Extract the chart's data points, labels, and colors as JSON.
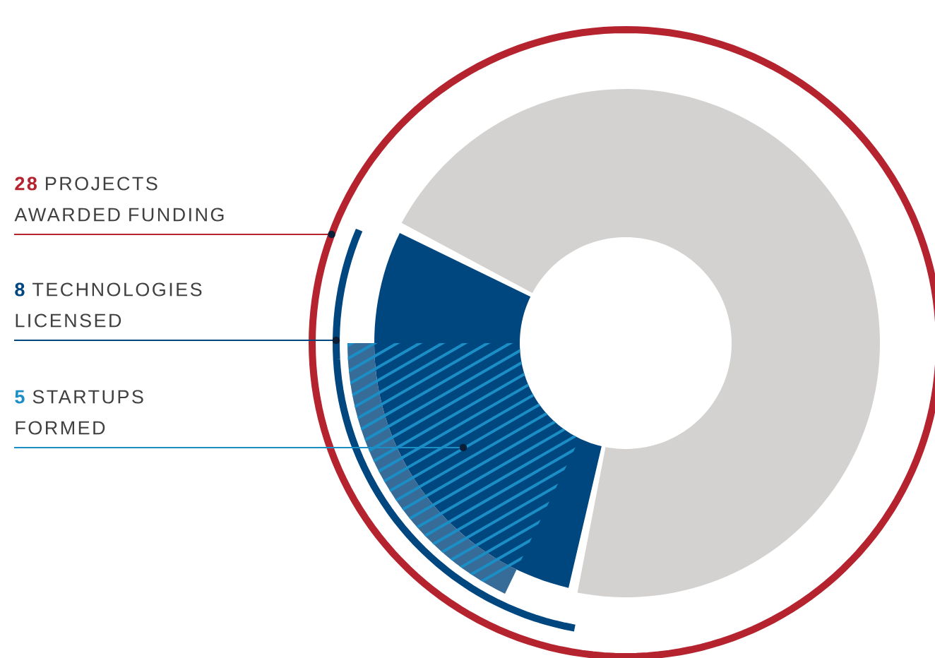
{
  "chart_data": {
    "type": "other",
    "categories": [
      "PROJECTS AWARDED FUNDING",
      "TECHNOLOGIES LICENSED",
      "STARTUPS FORMED"
    ],
    "values": [
      28,
      8,
      5
    ],
    "colors": [
      "#b5232f",
      "#00467f",
      "#1b8ec6"
    ],
    "data_labels": true
  }
}
